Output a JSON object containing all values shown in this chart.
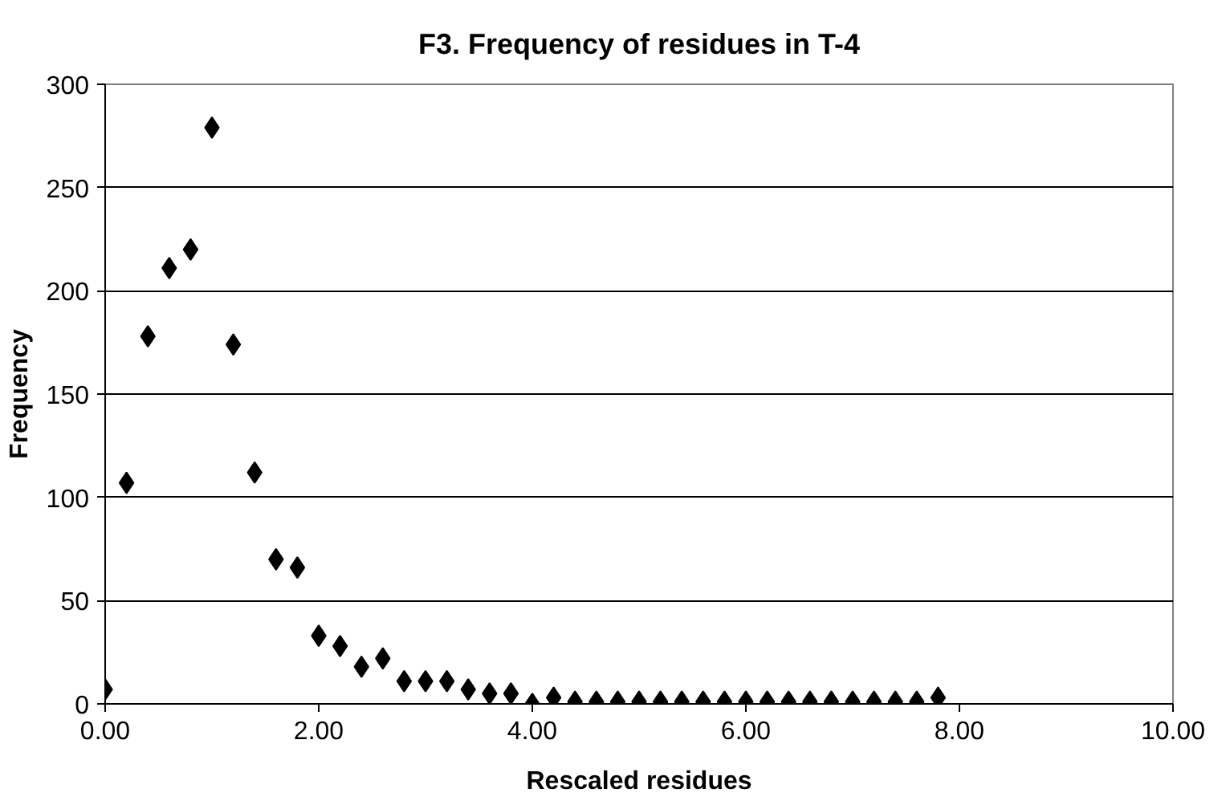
{
  "chart_data": {
    "type": "scatter",
    "title": "F3. Frequency of residues in T-4",
    "xlabel": "Rescaled residues",
    "ylabel": "Frequency",
    "x": [
      0,
      0.2,
      0.4,
      0.6,
      0.8,
      1.0,
      1.2,
      1.4,
      1.6,
      1.8,
      2.0,
      2.2,
      2.4,
      2.6,
      2.8,
      3.0,
      3.2,
      3.4,
      3.6,
      3.8,
      4.0,
      4.2,
      4.4,
      4.6,
      4.8,
      5.0,
      5.2,
      5.4,
      5.6,
      5.8,
      6.0,
      6.2,
      6.4,
      6.6,
      6.8,
      7.0,
      7.2,
      7.4,
      7.6,
      7.8
    ],
    "series": [
      {
        "color": "#000000",
        "values": [
          7,
          107,
          178,
          211,
          220,
          279,
          174,
          112,
          70,
          66,
          33,
          28,
          18,
          22,
          11,
          11,
          11,
          7,
          5,
          5,
          0,
          3,
          1,
          1,
          1,
          1,
          1,
          1,
          1,
          1,
          1,
          1,
          1,
          1,
          1,
          1,
          1,
          1,
          1,
          3
        ]
      }
    ],
    "xlim": [
      0,
      10
    ],
    "xticks": [
      {
        "value": 0,
        "label": "0.00"
      },
      {
        "value": 2,
        "label": "2.00"
      },
      {
        "value": 4,
        "label": "4.00"
      },
      {
        "value": 6,
        "label": "6.00"
      },
      {
        "value": 8,
        "label": "8.00"
      },
      {
        "value": 10,
        "label": "10.00"
      }
    ],
    "ylim": [
      0,
      300
    ],
    "yticks": [
      0,
      50,
      100,
      150,
      200,
      250,
      300
    ],
    "grid": "y",
    "marker": "diamond"
  }
}
